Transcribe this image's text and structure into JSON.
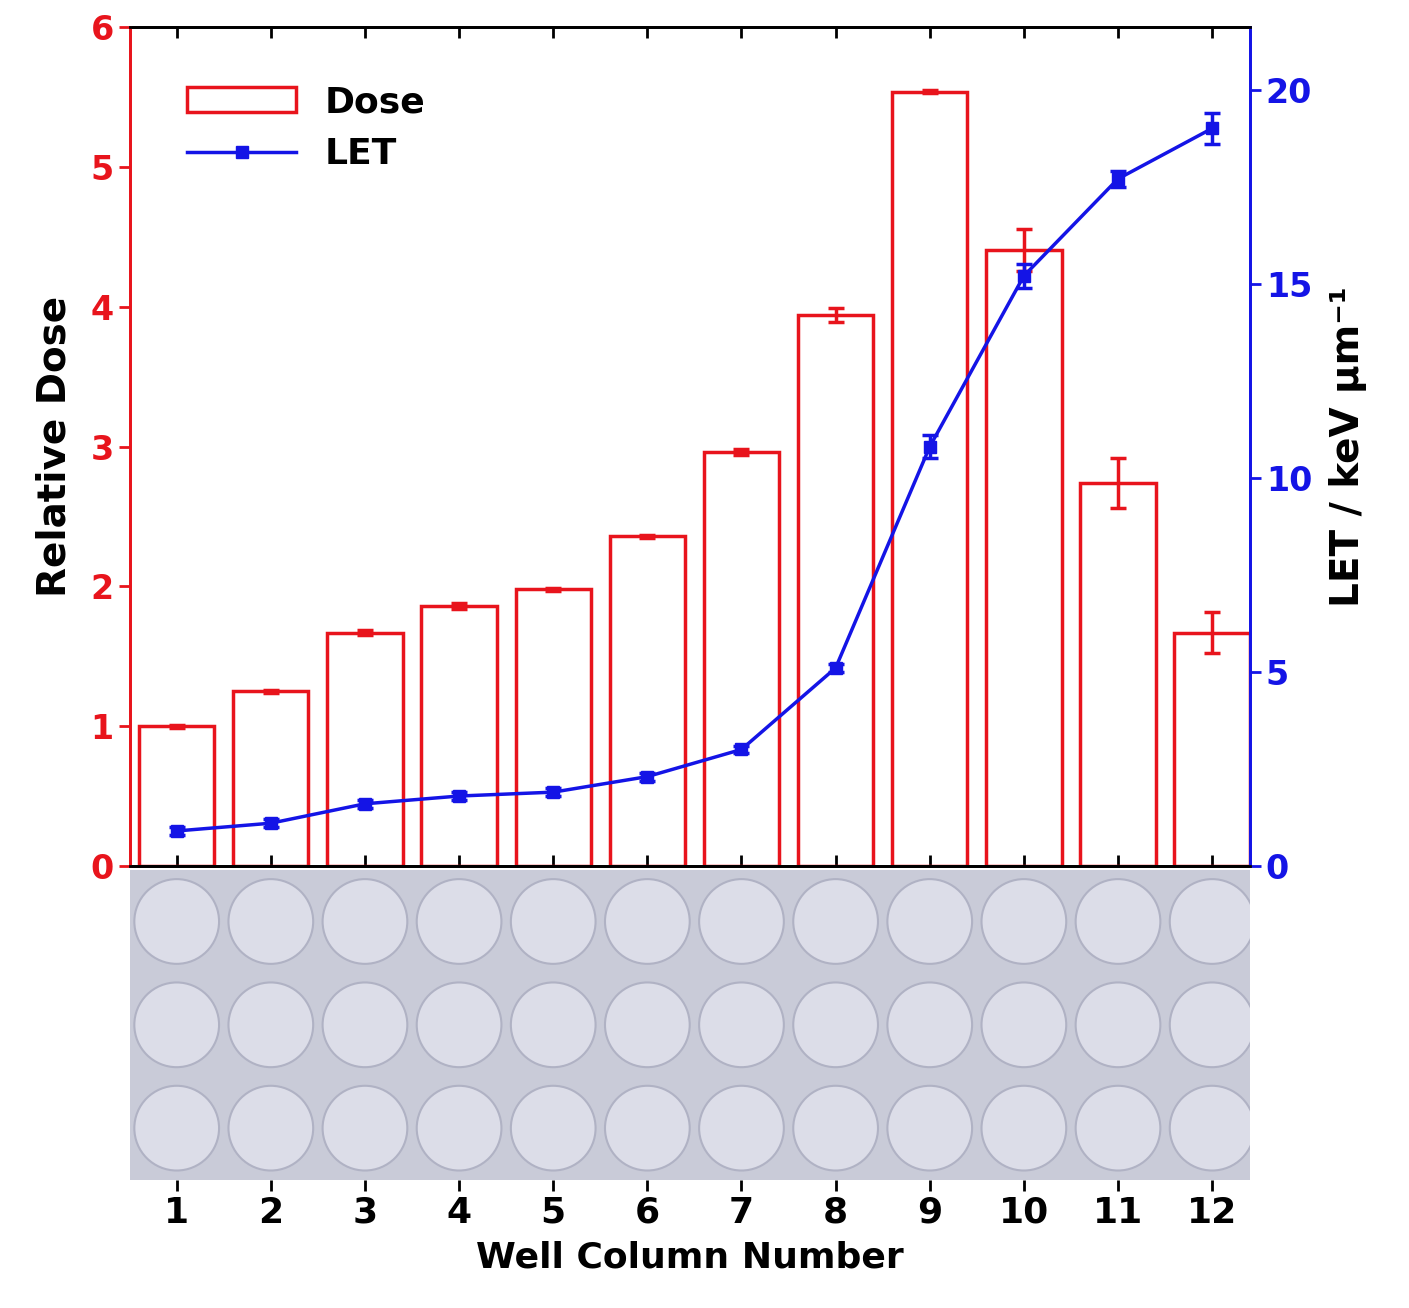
{
  "chart_data": {
    "type": "bar",
    "categories": [
      "1",
      "2",
      "3",
      "4",
      "5",
      "6",
      "7",
      "8",
      "9",
      "10",
      "11",
      "12"
    ],
    "x_label": "Well Column Number",
    "y_label": "Relative Dose",
    "y2_label": "LET / keV μm⁻¹",
    "ylim": [
      0,
      6
    ],
    "yticks": [
      0,
      1,
      2,
      3,
      4,
      5,
      6
    ],
    "y2lim": [
      0,
      21.6
    ],
    "y2ticks": [
      0,
      5,
      10,
      15,
      20
    ],
    "legend": "upper left",
    "series": [
      {
        "name": "Dose",
        "type": "bar",
        "color": "#e8141c",
        "values": [
          1.0,
          1.25,
          1.67,
          1.86,
          1.98,
          2.36,
          2.96,
          3.94,
          5.54,
          4.41,
          2.74,
          1.67
        ],
        "errors": [
          0.01,
          0.01,
          0.02,
          0.02,
          0.01,
          0.01,
          0.02,
          0.05,
          0.01,
          0.15,
          0.18,
          0.15
        ]
      },
      {
        "name": "LET",
        "type": "line",
        "color": "#1414e6",
        "marker": "s",
        "axis": "y2",
        "values": [
          0.9,
          1.1,
          1.6,
          1.8,
          1.9,
          2.3,
          3.0,
          5.1,
          10.8,
          15.2,
          17.7,
          19.0
        ],
        "errors": [
          0.1,
          0.1,
          0.1,
          0.1,
          0.1,
          0.1,
          0.1,
          0.1,
          0.3,
          0.3,
          0.2,
          0.4
        ]
      }
    ]
  }
}
